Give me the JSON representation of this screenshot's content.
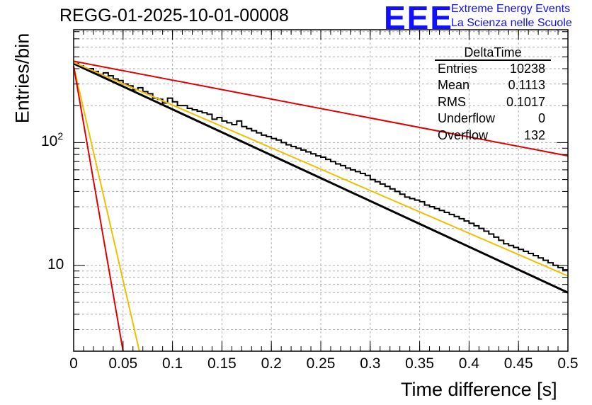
{
  "title": "REGG-01-2025-10-01-00008",
  "logo": {
    "mark": "EEE",
    "line1": "Extreme Energy Events",
    "line2": "La Scienza nelle Scuole"
  },
  "stats": {
    "name": "DeltaTime",
    "rows": [
      {
        "label": "Entries",
        "value": "10238"
      },
      {
        "label": "Mean",
        "value": "0.1113"
      },
      {
        "label": "RMS",
        "value": "0.1017"
      },
      {
        "label": "Underflow",
        "value": "0"
      },
      {
        "label": "Overflow",
        "value": "132"
      }
    ]
  },
  "chart_data": {
    "type": "histogram",
    "title": "REGG-01-2025-10-01-00008",
    "xlabel": "Time difference [s]",
    "ylabel": "Entries/bin",
    "xlim": [
      0,
      0.5
    ],
    "ylim": [
      2,
      830
    ],
    "yscale": "log",
    "grid": true,
    "x_ticks": [
      "0",
      "0.05",
      "0.1",
      "0.15",
      "0.2",
      "0.25",
      "0.3",
      "0.35",
      "0.4",
      "0.45",
      "0.5"
    ],
    "y_ticks": [
      {
        "value": 10,
        "label": "10"
      },
      {
        "value": 100,
        "label": "10",
        "exp": "2"
      }
    ],
    "bin_width": 0.005,
    "bin_counts": [
      440,
      420,
      400,
      400,
      380,
      360,
      370,
      350,
      330,
      320,
      300,
      290,
      270,
      280,
      260,
      250,
      230,
      225,
      210,
      230,
      215,
      200,
      200,
      190,
      185,
      180,
      175,
      170,
      155,
      160,
      150,
      145,
      140,
      150,
      135,
      130,
      125,
      120,
      115,
      112,
      108,
      105,
      100,
      96,
      93,
      90,
      87,
      84,
      81,
      78,
      76,
      73,
      70,
      67,
      65,
      62,
      60,
      58,
      56,
      54,
      50,
      48,
      46,
      44,
      42,
      40,
      38,
      36,
      35,
      34,
      33,
      31,
      30,
      29,
      28,
      27,
      26,
      25,
      24,
      23,
      22,
      21,
      20,
      19,
      18,
      17,
      16,
      15,
      14.5,
      14,
      13.5,
      13,
      12.5,
      12,
      11.5,
      11,
      10.5,
      10,
      9.6,
      9.2
    ],
    "series": [
      {
        "name": "black fit",
        "color": "#000000",
        "x": [
          0,
          0.5
        ],
        "y": [
          440,
          6
        ]
      },
      {
        "name": "orange fit",
        "color": "#f0c000",
        "x": [
          0,
          0.5
        ],
        "y": [
          450,
          8.2
        ]
      },
      {
        "name": "red fit",
        "color": "#e00000",
        "x": [
          0,
          0.5
        ],
        "y": [
          460,
          78
        ]
      },
      {
        "name": "orange steep",
        "color": "#f0c000",
        "x": [
          0,
          0.0665
        ],
        "y": [
          420,
          2
        ]
      },
      {
        "name": "red steep",
        "color": "#e00000",
        "x": [
          0,
          0.05
        ],
        "y": [
          420,
          2
        ]
      }
    ]
  }
}
